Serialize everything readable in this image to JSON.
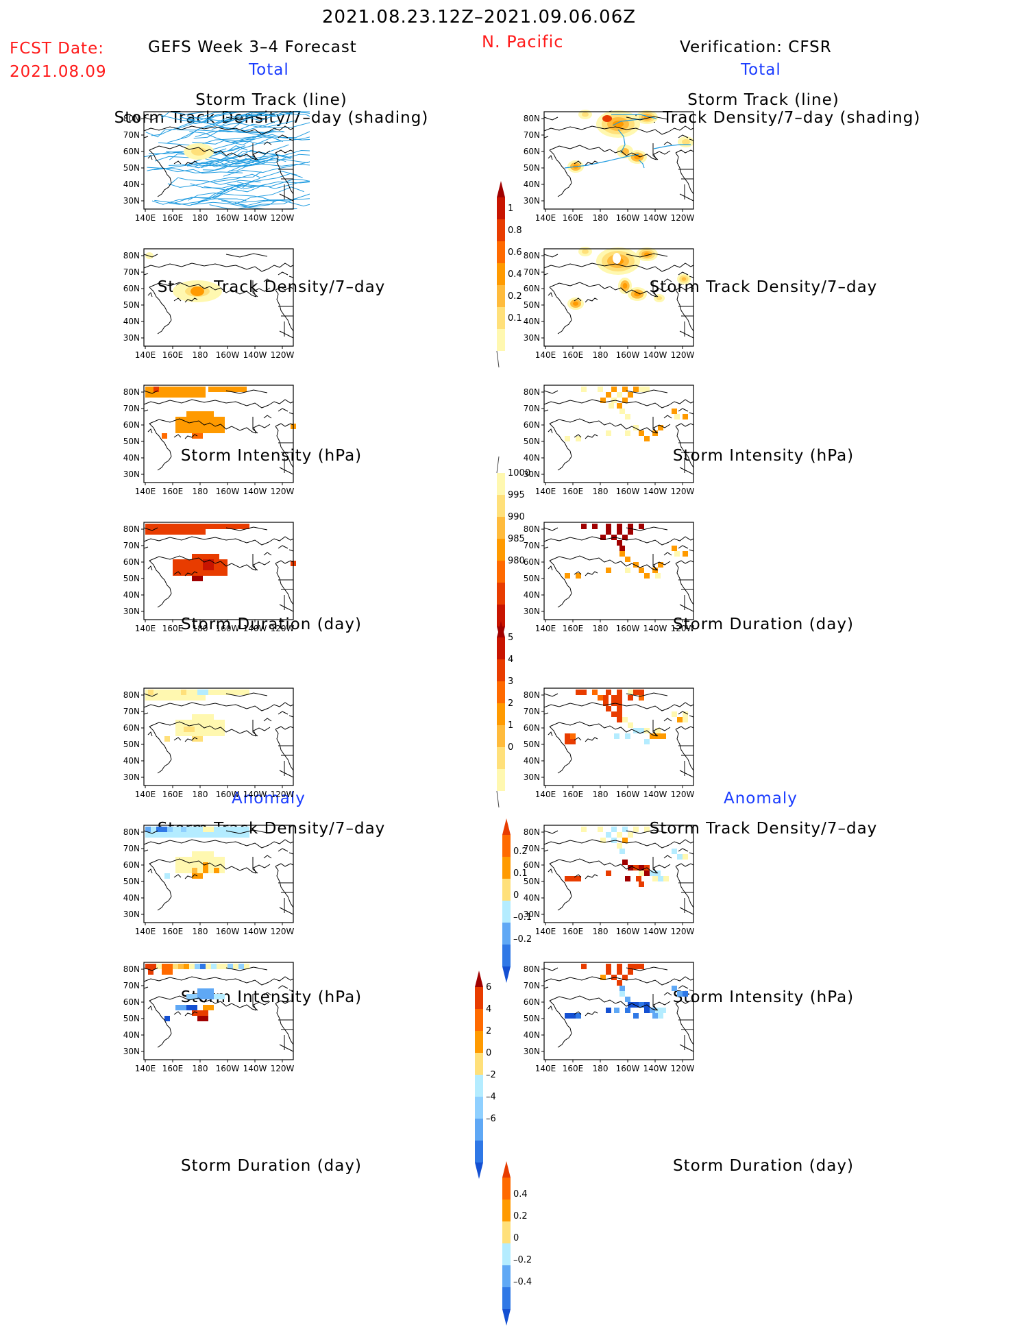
{
  "header": {
    "period": "2021.08.23.12Z–2021.09.06.06Z",
    "region": "N. Pacific",
    "fcst_date_label": "FCST Date:",
    "fcst_date": "2021.08.09",
    "left_title": "GEFS Week 3–4 Forecast",
    "right_title": "Verification: CFSR",
    "total_label": "Total",
    "anomaly_label": "Anomaly"
  },
  "panel_titles": {
    "track_line": "Storm Track (line)",
    "track_shading": "Storm Track Density/7–day (shading)",
    "density": "Storm Track Density/7–day",
    "intensity": "Storm Intensity (hPa)",
    "duration": "Storm Duration (day)"
  },
  "axes": {
    "lat_labels": [
      "80N",
      "70N",
      "60N",
      "50N",
      "40N",
      "30N"
    ],
    "lon_labels": [
      "140E",
      "160E",
      "180",
      "160W",
      "140W",
      "120W"
    ]
  },
  "colorbars": {
    "density_total": [
      "1",
      "0.8",
      "0.6",
      "0.4",
      "0.2",
      "0.1"
    ],
    "intensity_total": [
      "1000",
      "995",
      "990",
      "985",
      "980"
    ],
    "duration_total": [
      "5",
      "4",
      "3",
      "2",
      "1",
      "0"
    ],
    "density_anom": [
      "0.2",
      "0.1",
      "0",
      "–0.1",
      "–0.2"
    ],
    "intensity_anom": [
      "6",
      "4",
      "2",
      "0",
      "–2",
      "–4",
      "–6"
    ],
    "duration_anom": [
      "0.4",
      "0.2",
      "0",
      "–0.2",
      "–0.4"
    ]
  },
  "colors": {
    "red_text": "#ff1a1a",
    "blue_text": "#1a3cff",
    "track_line": "#1e9be0",
    "warm": [
      "#fff8b0",
      "#ffe07a",
      "#ffbb3c",
      "#ff9a00",
      "#ff6a00",
      "#e83c00",
      "#c81400",
      "#a00000"
    ],
    "cool": [
      "#b4ecff",
      "#8fd0ff",
      "#5fa8f5",
      "#2f78e6",
      "#1450d2"
    ]
  }
}
